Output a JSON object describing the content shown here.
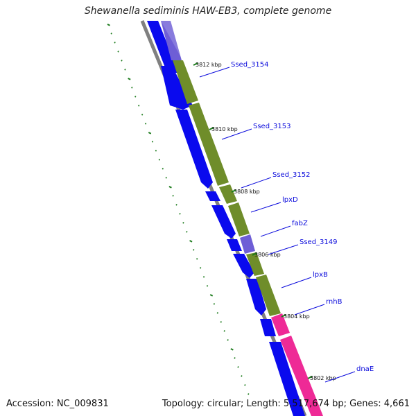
{
  "header": {
    "title": "Shewanella sediminis HAW-EB3, complete genome"
  },
  "footer": {
    "accession": "Accession: NC_009831",
    "summary": "Topology: circular; Length: 5,517,674 bp; Genes: 4,661"
  },
  "colors": {
    "background": "#ffffff",
    "backbone": "#808080",
    "cds_forward": "#0a0aee",
    "rna_like_purple": "#6e5ed6",
    "cog_green": "#6f8d2a",
    "cog_pink": "#ee2a96",
    "gc_skew_dots": "#1a7a1a",
    "label_color": "#0a0adc"
  },
  "ticks": [
    {
      "label": "3812 kbp"
    },
    {
      "label": "3810 kbp"
    },
    {
      "label": "3808 kbp"
    },
    {
      "label": "3806 kbp"
    },
    {
      "label": "3804 kbp"
    },
    {
      "label": "3802 kbp"
    }
  ],
  "genes": [
    {
      "label": "Ssed_3154"
    },
    {
      "label": "Ssed_3153"
    },
    {
      "label": "Ssed_3152"
    },
    {
      "label": "lpxD"
    },
    {
      "label": "fabZ"
    },
    {
      "label": "Ssed_3149"
    },
    {
      "label": "lpxB"
    },
    {
      "label": "rnhB"
    },
    {
      "label": "dnaE"
    }
  ]
}
